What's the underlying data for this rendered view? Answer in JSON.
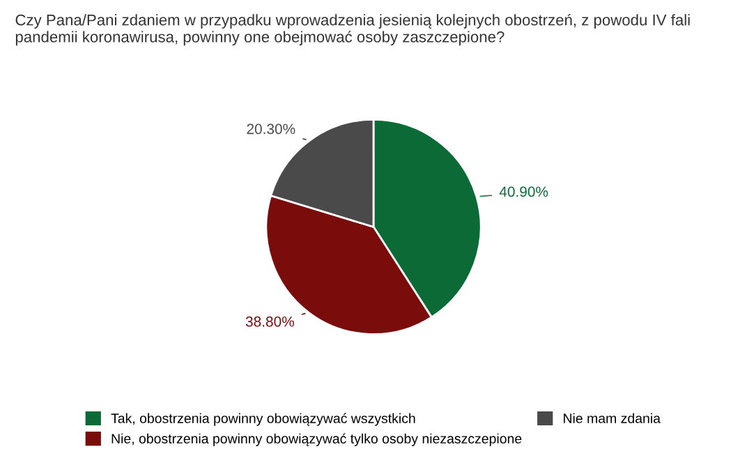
{
  "chart_data": {
    "type": "pie",
    "title": "Czy Pana/Pani zdaniem w przypadku wprowadzenia jesienią kolejnych obostrzeń, z powodu IV fali pandemii koronawirusa, powinny one obejmować osoby zaszczepione?",
    "categories": [
      "Tak, obostrzenia powinny obowiązywać wszystkich",
      "Nie, obostrzenia powinny obowiązywać tylko osoby niezaszczepione",
      "Nie mam zdania"
    ],
    "values": [
      40.9,
      38.8,
      20.3
    ],
    "value_labels": [
      "40.90%",
      "38.80%",
      "20.30%"
    ],
    "colors": [
      "#0b6a36",
      "#7b0c0c",
      "#4a4a4a"
    ],
    "legend": "bottom"
  }
}
